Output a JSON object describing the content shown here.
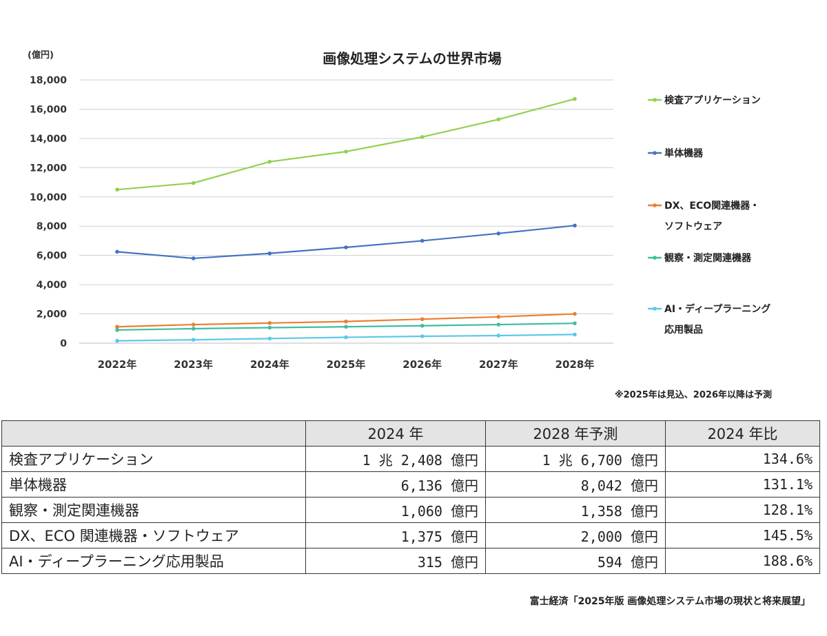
{
  "chart_data": {
    "type": "line",
    "title": "画像処理システムの世界市場",
    "ylabel": "(億円)",
    "xlabel": "",
    "categories": [
      "2022年",
      "2023年",
      "2024年",
      "2025年",
      "2026年",
      "2027年",
      "2028年"
    ],
    "ylim": [
      0,
      18000
    ],
    "yticks": [
      0,
      2000,
      4000,
      6000,
      8000,
      10000,
      12000,
      14000,
      16000,
      18000
    ],
    "ytick_labels": [
      "0",
      "2,000",
      "4,000",
      "6,000",
      "8,000",
      "10,000",
      "12,000",
      "14,000",
      "16,000",
      "18,000"
    ],
    "grid": true,
    "legend_position": "right",
    "series": [
      {
        "name": "検査アプリケーション",
        "legend_lines": [
          "検査アプリケーション"
        ],
        "color": "#92d050",
        "values": [
          10500,
          10950,
          12408,
          13100,
          14100,
          15300,
          16700
        ]
      },
      {
        "name": "単体機器",
        "legend_lines": [
          "単体機器"
        ],
        "color": "#4472c4",
        "values": [
          6250,
          5800,
          6136,
          6550,
          7000,
          7500,
          8042
        ]
      },
      {
        "name": "DX、ECO関連機器・ソフトウェア",
        "legend_lines": [
          "DX、ECO関連機器・",
          "ソフトウェア"
        ],
        "color": "#ed7d31",
        "values": [
          1120,
          1270,
          1375,
          1480,
          1640,
          1800,
          2000
        ]
      },
      {
        "name": "観察・測定関連機器",
        "legend_lines": [
          "観察・測定関連機器"
        ],
        "color": "#3cbfa0",
        "values": [
          900,
          990,
          1060,
          1120,
          1190,
          1270,
          1358
        ]
      },
      {
        "name": "AI・ディープラーニング応用製品",
        "legend_lines": [
          "AI・ディープラーニング",
          "応用製品"
        ],
        "color": "#5bc8e8",
        "values": [
          160,
          230,
          315,
          400,
          470,
          520,
          594
        ]
      }
    ]
  },
  "note": "※2025年は見込、2026年以降は予測",
  "table": {
    "headers": [
      "",
      "2024 年",
      "2028 年予測",
      "2024 年比"
    ],
    "rows": [
      [
        "検査アプリケーション",
        "1 兆 2,408 億円",
        "1 兆 6,700 億円",
        "134.6%"
      ],
      [
        "単体機器",
        "6,136 億円",
        "8,042 億円",
        "131.1%"
      ],
      [
        "観察・測定関連機器",
        "1,060 億円",
        "1,358 億円",
        "128.1%"
      ],
      [
        "DX、ECO 関連機器・ソフトウェア",
        "1,375 億円",
        "2,000 億円",
        "145.5%"
      ],
      [
        "AI・ディープラーニング応用製品",
        "315 億円",
        "594 億円",
        "188.6%"
      ]
    ]
  },
  "source": "富士経済「2025年版 画像処理システム市場の現状と将来展望」"
}
